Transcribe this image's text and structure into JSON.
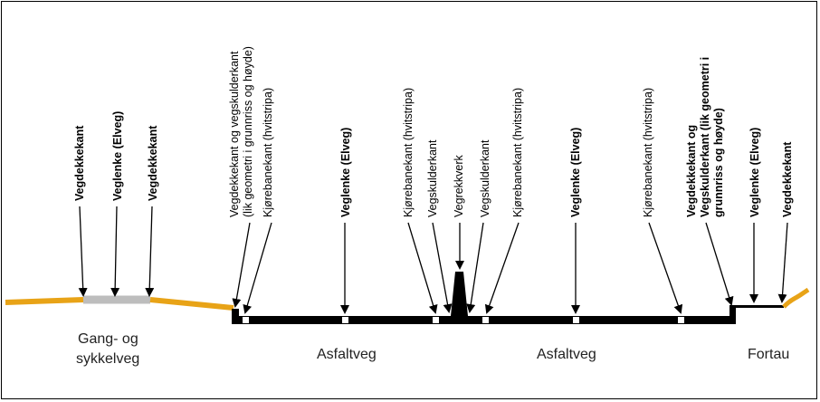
{
  "colors": {
    "path_orange": "#e8a317",
    "path_gray": "#bdbdbd",
    "road_black": "#000000",
    "marker_white": "#ffffff"
  },
  "labels": {
    "vegdekkekant_left": "Vegdekkekant",
    "veglenke_gang": "Veglenke (Elveg)",
    "vegdekkekant_gang_right": "Vegdekkekant",
    "vegdekkekant_vegskulder_1": "Vegdekkekant og vegskulderkant",
    "vegdekkekant_vegskulder_2": "(lik geometri i grunnriss og høyde)",
    "kjorebanekant_left": "Kjørebanekant (hvitstripa)",
    "veglenke_left_road": "Veglenke (Elveg)",
    "kjorebanekant_mid_left": "Kjørebanekant (hvitstripa)",
    "vegskulderkant_left": "Vegskulderkant",
    "vegrekkverk": "Vegrekkverk",
    "vegskulderkant_right": "Vegskulderkant",
    "kjorebanekant_mid_right": "Kjørebanekant (hvitstripa)",
    "veglenke_right_road": "Veglenke (Elveg)",
    "kjorebanekant_right": "Kjørebanekant (hvitstripa)",
    "vegdekkekant_og_1": "Vegdekkekant og",
    "vegdekkekant_og_2": "Vegskulderkant (lik geometri i",
    "vegdekkekant_og_3": "grunnriss og høyde)",
    "veglenke_fortau": "Veglenke (Elveg)",
    "vegdekkekant_fortau": "Vegdekkekant"
  },
  "bottom_labels": {
    "gang_line1": "Gang- og",
    "gang_line2": "sykkelveg",
    "asfaltveg_left": "Asfaltveg",
    "asfaltveg_right": "Asfaltveg",
    "fortau": "Fortau"
  }
}
